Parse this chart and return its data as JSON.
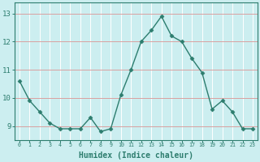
{
  "x": [
    0,
    1,
    2,
    3,
    4,
    5,
    6,
    7,
    8,
    9,
    10,
    11,
    12,
    13,
    14,
    15,
    16,
    17,
    18,
    19,
    20,
    21,
    22,
    23
  ],
  "y": [
    10.6,
    9.9,
    9.5,
    9.1,
    8.9,
    8.9,
    8.9,
    9.3,
    8.8,
    8.9,
    10.1,
    11.0,
    12.0,
    12.4,
    12.9,
    12.2,
    12.0,
    11.4,
    10.9,
    9.6,
    9.9,
    9.5,
    8.9,
    8.9
  ],
  "line_color": "#2d7d6e",
  "marker": "D",
  "marker_size": 2.5,
  "line_width": 1.0,
  "bg_color": "#cceef0",
  "grid_color_vertical": "#ffffff",
  "grid_color_horizontal": "#d9a0a0",
  "xlabel": "Humidex (Indice chaleur)",
  "xlabel_fontsize": 7,
  "ytick_labels": [
    "9",
    "10",
    "11",
    "12",
    "13"
  ],
  "ytick_values": [
    9,
    10,
    11,
    12,
    13
  ],
  "ylim": [
    8.5,
    13.4
  ],
  "xlim": [
    -0.5,
    23.5
  ],
  "tick_color": "#2d7d6e",
  "axis_color": "#2d7d6e"
}
